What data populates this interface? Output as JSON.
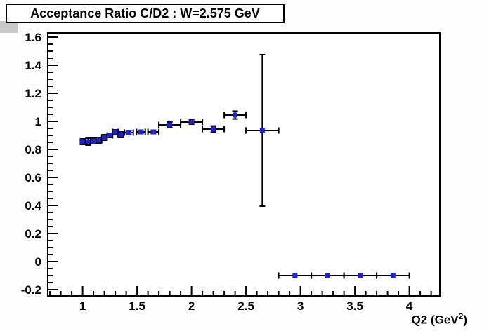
{
  "title": "Acceptance Ratio C/D2 : W=2.575 GeV",
  "chart_data": {
    "type": "scatter",
    "title": "Acceptance Ratio C/D2 : W=2.575 GeV",
    "xlabel": "Q2 (GeV^2)",
    "xlabel_prefix": "Q2 (GeV",
    "xlabel_sup": "2",
    "xlabel_suffix": ")",
    "ylabel": "",
    "xlim": [
      0.68,
      4.28
    ],
    "ylim": [
      -0.245,
      1.63
    ],
    "grid": false,
    "legend": "none",
    "axis_color": "#000000",
    "frame_fill": "#ffffff",
    "marker_color": "#2222cc",
    "error_bar_color": "#000000",
    "x_major_ticks": [
      1,
      1.5,
      2,
      2.5,
      3,
      3.5,
      4
    ],
    "x_major_labels": [
      "1",
      "1.5",
      "2",
      "2.5",
      "3",
      "3.5",
      "4"
    ],
    "x_minor_step": 0.1,
    "y_major_ticks": [
      -0.2,
      0,
      0.2,
      0.4,
      0.6,
      0.8,
      1,
      1.2,
      1.4,
      1.6
    ],
    "y_major_labels": [
      "-0.2",
      "0",
      "0.2",
      "0.4",
      "0.6",
      "0.8",
      "1",
      "1.2",
      "1.4",
      "1.6"
    ],
    "y_minor_step": 0.05,
    "points": [
      {
        "x": 1.0,
        "y": 0.855,
        "xerr": 0.02,
        "yerr": 0.02
      },
      {
        "x": 1.05,
        "y": 0.855,
        "xerr": 0.025,
        "yerr": 0.025
      },
      {
        "x": 1.1,
        "y": 0.86,
        "xerr": 0.025,
        "yerr": 0.02
      },
      {
        "x": 1.15,
        "y": 0.865,
        "xerr": 0.025,
        "yerr": 0.02
      },
      {
        "x": 1.2,
        "y": 0.885,
        "xerr": 0.025,
        "yerr": 0.02
      },
      {
        "x": 1.25,
        "y": 0.9,
        "xerr": 0.025,
        "yerr": 0.015
      },
      {
        "x": 1.3,
        "y": 0.925,
        "xerr": 0.025,
        "yerr": 0.015
      },
      {
        "x": 1.35,
        "y": 0.905,
        "xerr": 0.025,
        "yerr": 0.02
      },
      {
        "x": 1.425,
        "y": 0.92,
        "xerr": 0.04,
        "yerr": 0.015
      },
      {
        "x": 1.535,
        "y": 0.925,
        "xerr": 0.04,
        "yerr": 0.012
      },
      {
        "x": 1.65,
        "y": 0.925,
        "xerr": 0.05,
        "yerr": 0.012
      },
      {
        "x": 1.8,
        "y": 0.975,
        "xerr": 0.1,
        "yerr": 0.02
      },
      {
        "x": 2.0,
        "y": 0.995,
        "xerr": 0.1,
        "yerr": 0.015
      },
      {
        "x": 2.2,
        "y": 0.945,
        "xerr": 0.1,
        "yerr": 0.022
      },
      {
        "x": 2.4,
        "y": 1.045,
        "xerr": 0.1,
        "yerr": 0.028
      },
      {
        "x": 2.65,
        "y": 0.935,
        "xerr": 0.15,
        "yerr": 0.54
      },
      {
        "x": 2.95,
        "y": -0.1,
        "xerr": 0.15,
        "yerr": 0
      },
      {
        "x": 3.25,
        "y": -0.1,
        "xerr": 0.15,
        "yerr": 0
      },
      {
        "x": 3.55,
        "y": -0.1,
        "xerr": 0.15,
        "yerr": 0
      },
      {
        "x": 3.85,
        "y": -0.1,
        "xerr": 0.15,
        "yerr": 0
      }
    ]
  }
}
